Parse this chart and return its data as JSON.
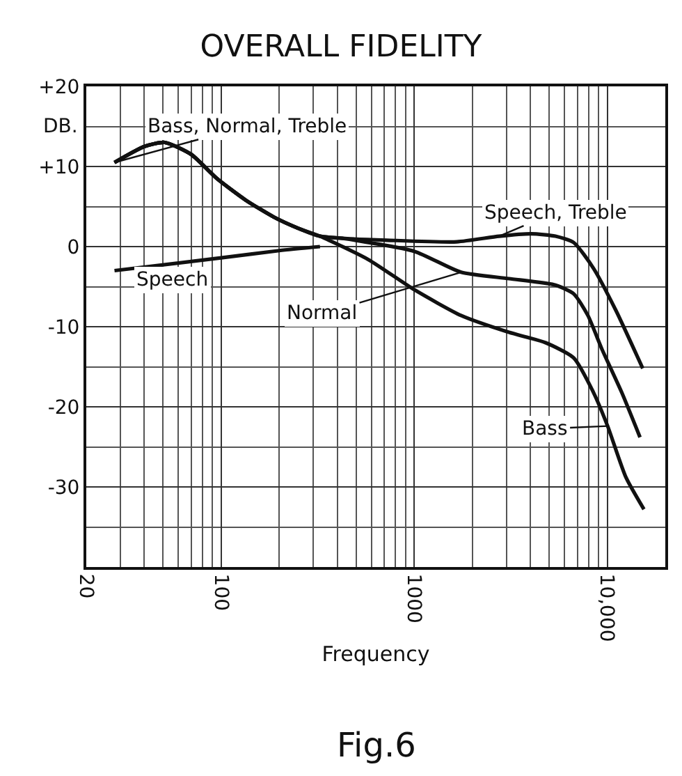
{
  "chart_data": {
    "type": "line",
    "title": "OVERALL FIDELITY",
    "xlabel": "Frequency",
    "ylabel": "DB.",
    "log": "x",
    "grid": true,
    "marker": "none",
    "line_style": "solid",
    "xlim": [
      20,
      20000
    ],
    "xticks": [
      20,
      100,
      1000,
      {
        "value": 10000,
        "label": "10,000"
      }
    ],
    "ylim": [
      -40,
      20
    ],
    "yticks": [
      {
        "value": 20,
        "label": "+20"
      },
      {
        "value": 10,
        "label": "+10"
      },
      0,
      -10,
      -20,
      -30
    ],
    "series": [
      {
        "color": "#111111",
        "x": [
          28,
          40,
          51,
          70,
          95,
          134,
          187,
          250,
          325,
          450,
          718,
          1663,
          2754,
          4052,
          5391,
          6711,
          8486,
          11110,
          15280
        ],
        "values": [
          10.5,
          12.5,
          13,
          11.5,
          8.5,
          5.8,
          3.7,
          2.3,
          1.3,
          1,
          0.8,
          0.6,
          1.3,
          1.6,
          1.3,
          0.5,
          -2.7,
          -8,
          -15.2
        ]
      },
      {
        "color": "#111111",
        "x": [
          28,
          40,
          51,
          70,
          95,
          134,
          187,
          250,
          325,
          433,
          1004,
          1749,
          3097,
          5391,
          6711,
          7943,
          9390,
          11890,
          14790
        ],
        "values": [
          10.5,
          12.5,
          13,
          11.5,
          8.5,
          5.8,
          3.7,
          2.3,
          1.3,
          1,
          -0.6,
          -3.2,
          -4,
          -4.8,
          -5.9,
          -8.6,
          -12.8,
          -18.2,
          -23.8
        ]
      },
      {
        "color": "#111111",
        "x": [
          28,
          40,
          51,
          70,
          95,
          134,
          187,
          250,
          325,
          577,
          1004,
          1749,
          3097,
          4797,
          6711,
          8486,
          10050,
          12500,
          15500
        ],
        "values": [
          10.5,
          12.5,
          13,
          11.5,
          8.5,
          5.8,
          3.7,
          2.3,
          1.3,
          -1.6,
          -5.4,
          -8.6,
          -10.7,
          -12,
          -13.9,
          -18.2,
          -22.4,
          -28.8,
          -32.8
        ]
      },
      {
        "color": "#111111",
        "x": [
          28,
          100,
          200,
          325
        ],
        "values": [
          -3,
          -1.4,
          -0.5,
          0
        ]
      }
    ],
    "annotations": [
      {
        "text": "Bass, Normal, Treble",
        "x": 28,
        "y": 10.5
      },
      {
        "text": "Speech, Treble",
        "x": 2754,
        "y": 1.3
      },
      {
        "text": "Speech",
        "x": 100,
        "y": -1.4
      },
      {
        "text": "Normal",
        "x": 1749,
        "y": -3.2
      },
      {
        "text": "Bass",
        "x": 10050,
        "y": -22.4
      },
      "Fig.6"
    ]
  }
}
